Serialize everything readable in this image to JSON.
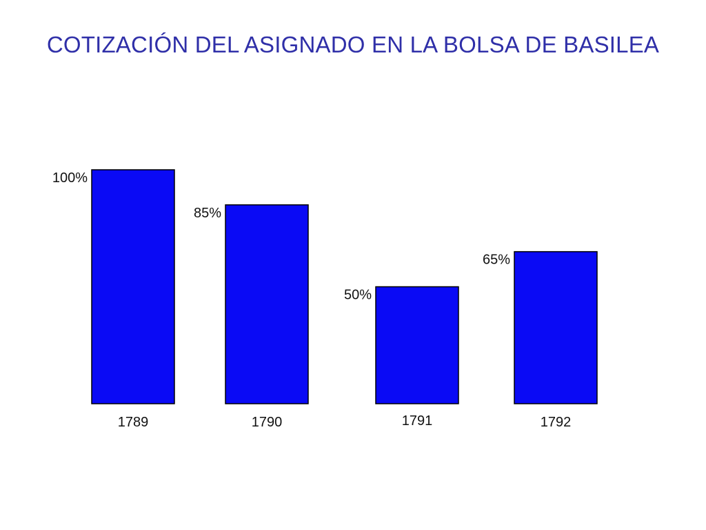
{
  "slide": {
    "title": "COTIZACIÓN DEL ASIGNADO EN LA BOLSA DE BASILEA"
  },
  "colors": {
    "title": "#2f2fa8",
    "bar_fill": "#0a0af5",
    "bar_stroke": "#000000"
  },
  "chart_data": {
    "type": "bar",
    "title": "COTIZACIÓN DEL ASIGNADO EN LA BOLSA DE BASILEA",
    "xlabel": "",
    "ylabel": "",
    "categories": [
      "1789",
      "1790",
      "1791",
      "1792"
    ],
    "values": [
      100,
      85,
      50,
      65
    ],
    "value_labels": [
      "100%",
      "85%",
      "50%",
      "65%"
    ],
    "ylim": [
      0,
      100
    ],
    "grid": false,
    "legend": "none"
  }
}
